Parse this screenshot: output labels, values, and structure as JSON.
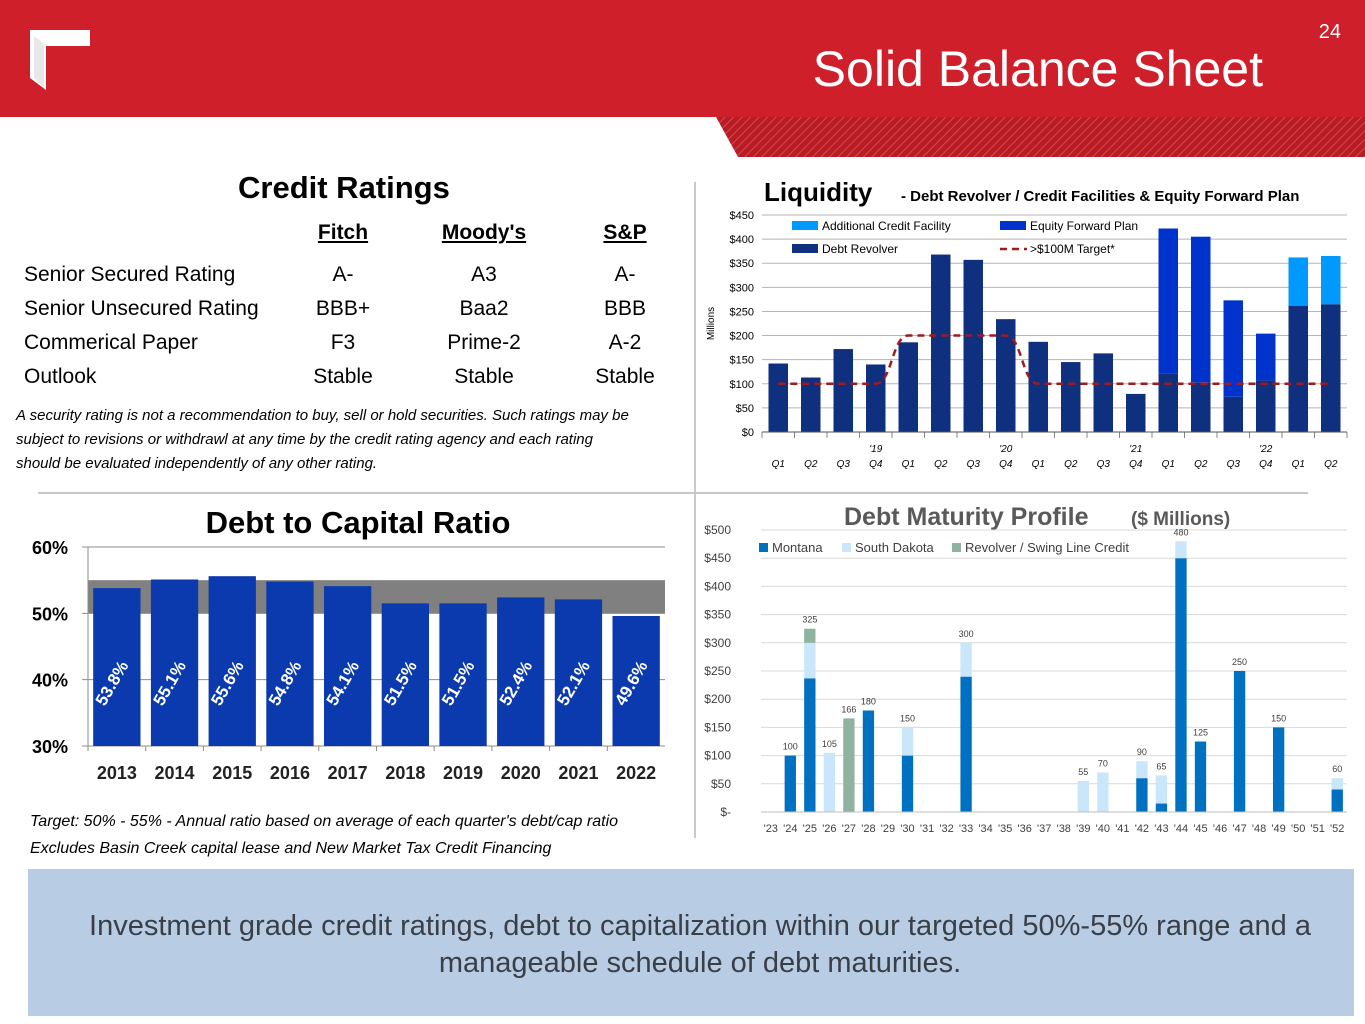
{
  "slide": {
    "title": "Solid Balance Sheet",
    "page_number": "24"
  },
  "credit_ratings": {
    "title": "Credit Ratings",
    "agencies": [
      "Fitch",
      "Moody's",
      "S&P"
    ],
    "rows": [
      {
        "label": "Senior Secured Rating",
        "values": [
          "A-",
          "A3",
          "A-"
        ]
      },
      {
        "label": "Senior Unsecured Rating",
        "values": [
          "BBB+",
          "Baa2",
          "BBB"
        ]
      },
      {
        "label": "Commerical Paper",
        "values": [
          "F3",
          "Prime-2",
          "A-2"
        ]
      },
      {
        "label": "Outlook",
        "values": [
          "Stable",
          "Stable",
          "Stable"
        ]
      }
    ],
    "disclaimer": [
      "A security rating is not a recommendation to buy, sell or hold securities.  Such ratings may be",
      "subject to revisions or withdrawl at any time by the credit rating agency and each rating",
      "should be evaluated independently of any other rating."
    ]
  },
  "debt_to_capital_notes": [
    "Target:  50% - 55% - Annual ratio based on average of each quarter's debt/cap ratio",
    "Excludes Basin Creek capital lease and New Market Tax Credit Financing"
  ],
  "summary": "Investment grade credit ratings, debt to capitalization within our targeted 50%-55% range and a manageable schedule of debt maturities.",
  "colors": {
    "brand_red": "#cf1f2b",
    "navy": "#0f2f7f",
    "royal": "#0033cc",
    "sky": "#0099ff",
    "ratio_bar": "#0a3aad",
    "montana": "#0070c0",
    "south_dakota": "#c9e6fa",
    "revolver": "#8fb3a0",
    "summary_bg": "#b8cce4"
  },
  "chart_data": [
    {
      "type": "bar",
      "title": "Liquidity",
      "subtitle": "- Debt Revolver / Credit Facilities & Equity Forward Plan",
      "ylabel": "Millions",
      "ylim": [
        0,
        450
      ],
      "yticks": [
        0,
        50,
        100,
        150,
        200,
        250,
        300,
        350,
        400,
        450
      ],
      "ytick_labels": [
        "$0",
        "$50",
        "$100",
        "$150",
        "$200",
        "$250",
        "$300",
        "$350",
        "$400",
        "$450"
      ],
      "categories": [
        "Q1",
        "Q2",
        "Q3",
        "Q4",
        "Q1",
        "Q2",
        "Q3",
        "Q4",
        "Q1",
        "Q2",
        "Q3",
        "Q4",
        "Q1",
        "Q2",
        "Q3",
        "Q4",
        "Q1",
        "Q2"
      ],
      "year_labels": [
        {
          "index": 3,
          "label": "'19"
        },
        {
          "index": 7,
          "label": "'20"
        },
        {
          "index": 11,
          "label": "'21"
        },
        {
          "index": 15,
          "label": "'22"
        }
      ],
      "legend": [
        "Additional Credit Facility",
        "Equity Forward Plan",
        "Debt Revolver",
        ">$100M Target*"
      ],
      "series": [
        {
          "name": "Debt Revolver",
          "values": [
            142,
            113,
            172,
            140,
            186,
            368,
            357,
            234,
            187,
            145,
            163,
            79,
            122,
            103,
            73,
            107,
            262,
            265
          ]
        },
        {
          "name": "Equity Forward Plan",
          "values": [
            0,
            0,
            0,
            0,
            0,
            0,
            0,
            0,
            0,
            0,
            0,
            0,
            300,
            302,
            200,
            97,
            0,
            0
          ]
        },
        {
          "name": "Additional Credit Facility",
          "values": [
            0,
            0,
            0,
            0,
            0,
            0,
            0,
            0,
            0,
            0,
            0,
            0,
            0,
            0,
            0,
            0,
            100,
            100
          ]
        }
      ],
      "target_line": {
        "name": ">$100M Target*",
        "values": [
          100,
          100,
          100,
          100,
          200,
          200,
          200,
          200,
          100,
          100,
          100,
          100,
          100,
          100,
          100,
          100,
          100,
          100
        ]
      }
    },
    {
      "type": "bar",
      "title": "Debt to Capital Ratio",
      "ylim": [
        30,
        60
      ],
      "yticks": [
        30,
        40,
        50,
        60
      ],
      "ytick_labels": [
        "30%",
        "40%",
        "50%",
        "60%"
      ],
      "target_band": [
        50,
        55
      ],
      "categories": [
        "2013",
        "2014",
        "2015",
        "2016",
        "2017",
        "2018",
        "2019",
        "2020",
        "2021",
        "2022"
      ],
      "values": [
        53.8,
        55.1,
        55.6,
        54.8,
        54.1,
        51.5,
        51.5,
        52.4,
        52.1,
        49.6
      ],
      "data_labels": [
        "53.8%",
        "55.1%",
        "55.6%",
        "54.8%",
        "54.1%",
        "51.5%",
        "51.5%",
        "52.4%",
        "52.1%",
        "49.6%"
      ]
    },
    {
      "type": "bar",
      "title": "Debt Maturity Profile",
      "subtitle": "($ Millions)",
      "ylim": [
        0,
        500
      ],
      "yticks": [
        0,
        50,
        100,
        150,
        200,
        250,
        300,
        350,
        400,
        450,
        500
      ],
      "ytick_labels": [
        "$-",
        "$50",
        "$100",
        "$150",
        "$200",
        "$250",
        "$300",
        "$350",
        "$400",
        "$450",
        "$500"
      ],
      "legend": [
        "Montana",
        "South Dakota",
        "Revolver / Swing Line Credit"
      ],
      "categories": [
        "'23",
        "'24",
        "'25",
        "'26",
        "'27",
        "'28",
        "'29",
        "'30",
        "'31",
        "'32",
        "'33",
        "'34",
        "'35",
        "'36",
        "'37",
        "'38",
        "'39",
        "'40",
        "'41",
        "'42",
        "'43",
        "'44",
        "'45",
        "'46",
        "'47",
        "'48",
        "'49",
        "'50",
        "'51",
        "'52"
      ],
      "series": [
        {
          "name": "Montana",
          "values": [
            0,
            100,
            237,
            0,
            0,
            180,
            0,
            100,
            0,
            0,
            240,
            0,
            0,
            0,
            0,
            0,
            0,
            0,
            0,
            60,
            15,
            450,
            125,
            0,
            250,
            0,
            150,
            0,
            0,
            40
          ]
        },
        {
          "name": "South Dakota",
          "values": [
            0,
            0,
            63,
            105,
            0,
            0,
            0,
            50,
            0,
            0,
            60,
            0,
            0,
            0,
            0,
            0,
            55,
            70,
            0,
            30,
            50,
            30,
            0,
            0,
            0,
            0,
            0,
            0,
            0,
            20
          ]
        },
        {
          "name": "Revolver / Swing Line Credit",
          "values": [
            0,
            0,
            25,
            0,
            166,
            0,
            0,
            0,
            0,
            0,
            0,
            0,
            0,
            0,
            0,
            0,
            0,
            0,
            0,
            0,
            0,
            0,
            0,
            0,
            0,
            0,
            0,
            0,
            0,
            0
          ]
        }
      ],
      "total_labels": [
        "",
        "100",
        "325",
        "105",
        "166",
        "180",
        "",
        "150",
        "",
        "",
        "300",
        "",
        "",
        "",
        "",
        "",
        "55",
        "70",
        "",
        "90",
        "65",
        "480",
        "125",
        "",
        "250",
        "",
        "150",
        "",
        "",
        "60"
      ]
    }
  ]
}
